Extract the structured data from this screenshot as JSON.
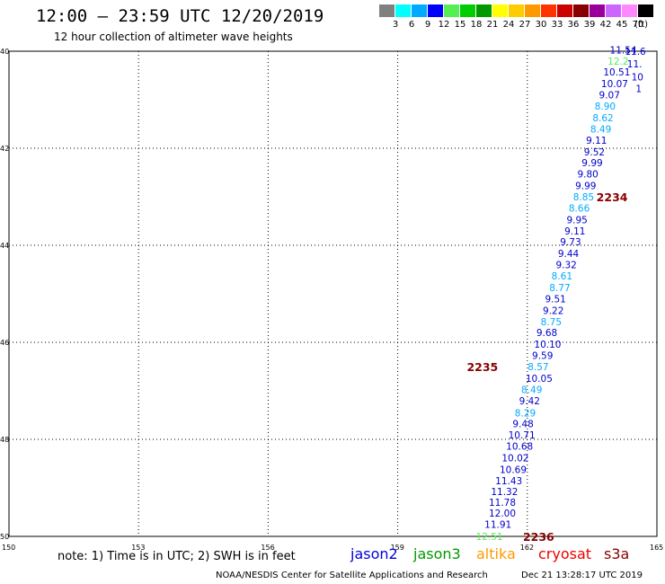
{
  "header": {
    "title": "12:00 – 23:59 UTC 12/20/2019",
    "subtitle": "12 hour collection of altimeter wave heights"
  },
  "legend": {
    "unit": "(ft)",
    "items": [
      {
        "label": "3",
        "color": "#808080"
      },
      {
        "label": "6",
        "color": "#00ffff"
      },
      {
        "label": "9",
        "color": "#00aaff"
      },
      {
        "label": "12",
        "color": "#0000ff"
      },
      {
        "label": "15",
        "color": "#55ee55"
      },
      {
        "label": "18",
        "color": "#00cc00"
      },
      {
        "label": "21",
        "color": "#009900"
      },
      {
        "label": "24",
        "color": "#ffff00"
      },
      {
        "label": "27",
        "color": "#ffcc00"
      },
      {
        "label": "30",
        "color": "#ff9900"
      },
      {
        "label": "33",
        "color": "#ff3300"
      },
      {
        "label": "36",
        "color": "#cc0000"
      },
      {
        "label": "39",
        "color": "#880000"
      },
      {
        "label": "42",
        "color": "#990099"
      },
      {
        "label": "45",
        "color": "#cc66ff"
      },
      {
        "label": "70",
        "color": "#ff88ff"
      },
      {
        "label": "",
        "color": "#000000"
      }
    ]
  },
  "map": {
    "lon_ticks": [
      "150",
      "153",
      "156",
      "159",
      "162",
      "165"
    ],
    "lat_ticks": [
      "40",
      "42",
      "44",
      "46",
      "48",
      "50"
    ],
    "lon_range": [
      150,
      165
    ],
    "lat_range": [
      40,
      50
    ],
    "times": [
      {
        "label": "2234",
        "lon": 163.1,
        "lat": 43.0
      },
      {
        "label": "2235",
        "lon": 160.1,
        "lat": 46.5
      },
      {
        "label": "2236",
        "lon": 161.4,
        "lat": 50.0
      }
    ],
    "points": [
      {
        "v": "11.91",
        "lon": 161.3,
        "lat": 49.75,
        "c": "#0000cc"
      },
      {
        "v": "12.51",
        "lon": 161.1,
        "lat": 50.0,
        "c": "#55ee55"
      },
      {
        "v": "12.00",
        "lon": 161.4,
        "lat": 49.52,
        "c": "#0000cc"
      },
      {
        "v": "11.78",
        "lon": 161.4,
        "lat": 49.3,
        "c": "#0000cc"
      },
      {
        "v": "11.32",
        "lon": 161.45,
        "lat": 49.07,
        "c": "#0000cc"
      },
      {
        "v": "11.43",
        "lon": 161.55,
        "lat": 48.85,
        "c": "#0000cc"
      },
      {
        "v": "10.69",
        "lon": 161.65,
        "lat": 48.62,
        "c": "#0000cc"
      },
      {
        "v": "10.02",
        "lon": 161.7,
        "lat": 48.38,
        "c": "#0000cc"
      },
      {
        "v": "10.68",
        "lon": 161.8,
        "lat": 48.14,
        "c": "#0000cc"
      },
      {
        "v": "10.71",
        "lon": 161.85,
        "lat": 47.91,
        "c": "#0000cc"
      },
      {
        "v": "9.48",
        "lon": 161.95,
        "lat": 47.68,
        "c": "#0000cc"
      },
      {
        "v": "8.29",
        "lon": 162.0,
        "lat": 47.45,
        "c": "#00aaff"
      },
      {
        "v": "9.42",
        "lon": 162.1,
        "lat": 47.2,
        "c": "#0000cc"
      },
      {
        "v": "8.49",
        "lon": 162.15,
        "lat": 46.97,
        "c": "#00aaff"
      },
      {
        "v": "10.05",
        "lon": 162.25,
        "lat": 46.74,
        "c": "#0000cc"
      },
      {
        "v": "8.57",
        "lon": 162.3,
        "lat": 46.5,
        "c": "#00aaff"
      },
      {
        "v": "9.59",
        "lon": 162.4,
        "lat": 46.27,
        "c": "#0000cc"
      },
      {
        "v": "10.10",
        "lon": 162.45,
        "lat": 46.04,
        "c": "#0000cc"
      },
      {
        "v": "9.68",
        "lon": 162.5,
        "lat": 45.8,
        "c": "#0000cc"
      },
      {
        "v": "8.75",
        "lon": 162.6,
        "lat": 45.57,
        "c": "#00aaff"
      },
      {
        "v": "9.22",
        "lon": 162.65,
        "lat": 45.34,
        "c": "#0000cc"
      },
      {
        "v": "9.51",
        "lon": 162.7,
        "lat": 45.1,
        "c": "#0000cc"
      },
      {
        "v": "8.77",
        "lon": 162.8,
        "lat": 44.87,
        "c": "#00aaff"
      },
      {
        "v": "8.61",
        "lon": 162.85,
        "lat": 44.63,
        "c": "#00aaff"
      },
      {
        "v": "9.32",
        "lon": 162.95,
        "lat": 44.4,
        "c": "#0000cc"
      },
      {
        "v": "9.44",
        "lon": 163.0,
        "lat": 44.17,
        "c": "#0000cc"
      },
      {
        "v": "9.73",
        "lon": 163.05,
        "lat": 43.93,
        "c": "#0000cc"
      },
      {
        "v": "9.11",
        "lon": 163.15,
        "lat": 43.7,
        "c": "#0000cc"
      },
      {
        "v": "9.95",
        "lon": 163.2,
        "lat": 43.47,
        "c": "#0000cc"
      },
      {
        "v": "8.66",
        "lon": 163.25,
        "lat": 43.23,
        "c": "#00aaff"
      },
      {
        "v": "8.85",
        "lon": 163.35,
        "lat": 43.0,
        "c": "#00aaff"
      },
      {
        "v": "9.99",
        "lon": 163.4,
        "lat": 42.77,
        "c": "#0000cc"
      },
      {
        "v": "9.80",
        "lon": 163.45,
        "lat": 42.53,
        "c": "#0000cc"
      },
      {
        "v": "9.99",
        "lon": 163.55,
        "lat": 42.3,
        "c": "#0000cc"
      },
      {
        "v": "9.52",
        "lon": 163.6,
        "lat": 42.07,
        "c": "#0000cc"
      },
      {
        "v": "9.11",
        "lon": 163.65,
        "lat": 41.83,
        "c": "#0000cc"
      },
      {
        "v": "8.49",
        "lon": 163.75,
        "lat": 41.6,
        "c": "#00aaff"
      },
      {
        "v": "8.62",
        "lon": 163.8,
        "lat": 41.37,
        "c": "#00aaff"
      },
      {
        "v": "8.90",
        "lon": 163.85,
        "lat": 41.13,
        "c": "#00aaff"
      },
      {
        "v": "9.07",
        "lon": 163.95,
        "lat": 40.9,
        "c": "#0000cc"
      },
      {
        "v": "10.07",
        "lon": 164.0,
        "lat": 40.67,
        "c": "#0000cc"
      },
      {
        "v": "10.51",
        "lon": 164.05,
        "lat": 40.43,
        "c": "#0000cc"
      },
      {
        "v": "12.2",
        "lon": 164.15,
        "lat": 40.2,
        "c": "#55ee55"
      },
      {
        "v": "11.54",
        "lon": 164.2,
        "lat": 39.97,
        "c": "#0000cc"
      },
      {
        "v": "11.6",
        "lon": 164.55,
        "lat": 40.0,
        "c": "#0000cc"
      },
      {
        "v": "11.",
        "lon": 164.6,
        "lat": 40.26,
        "c": "#0000cc"
      },
      {
        "v": "10",
        "lon": 164.7,
        "lat": 40.53,
        "c": "#0000cc"
      },
      {
        "v": "1",
        "lon": 164.8,
        "lat": 40.77,
        "c": "#0000cc"
      }
    ]
  },
  "footer": {
    "note": "note:  1) Time is in UTC;  2) SWH is in feet",
    "missions": [
      {
        "name": "jason2",
        "color": "#0000dd"
      },
      {
        "name": "jason3",
        "color": "#009900"
      },
      {
        "name": "altika",
        "color": "#ff9900"
      },
      {
        "name": "cryosat",
        "color": "#ee0000"
      },
      {
        "name": "s3a",
        "color": "#880000"
      }
    ],
    "credit": "NOAA/NESDIS Center for Satellite Applications and Research",
    "timestamp": "Dec 21 13:28:17 UTC 2019"
  }
}
